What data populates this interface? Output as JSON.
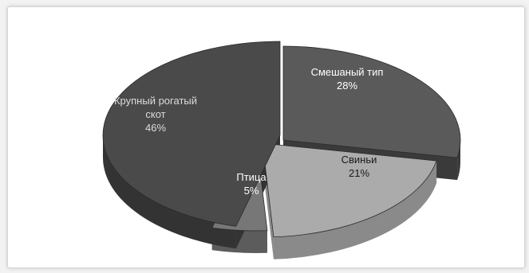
{
  "chart_data": {
    "type": "pie",
    "style": "3d-exploded",
    "categories": [
      "Крупный рогатый скот",
      "Смешаный тип",
      "Свиньи",
      "Птица"
    ],
    "values": [
      46,
      28,
      21,
      5
    ],
    "unit": "%",
    "slices": [
      {
        "name": "Крупный рогатый скот",
        "lines": [
          "Крупный рогатый",
          "скот"
        ],
        "value_label": "46%",
        "color": "#4a4a4a",
        "side": "#333333",
        "label_color": "#dcdcdc"
      },
      {
        "name": "Смешаный тип",
        "lines": [
          "Смешаный тип"
        ],
        "value_label": "28%",
        "color": "#5a5a5a",
        "side": "#3a3a3a",
        "label_color": "#ffffff"
      },
      {
        "name": "Свиньи",
        "lines": [
          "Свиньи"
        ],
        "value_label": "21%",
        "color": "#ababab",
        "side": "#8a8a8a",
        "label_color": "#1a1a1a"
      },
      {
        "name": "Птица",
        "lines": [
          "Птица"
        ],
        "value_label": "5%",
        "color": "#777777",
        "side": "#5c5c5c",
        "label_color": "#ffffff"
      }
    ],
    "title": "",
    "legend": "none"
  }
}
